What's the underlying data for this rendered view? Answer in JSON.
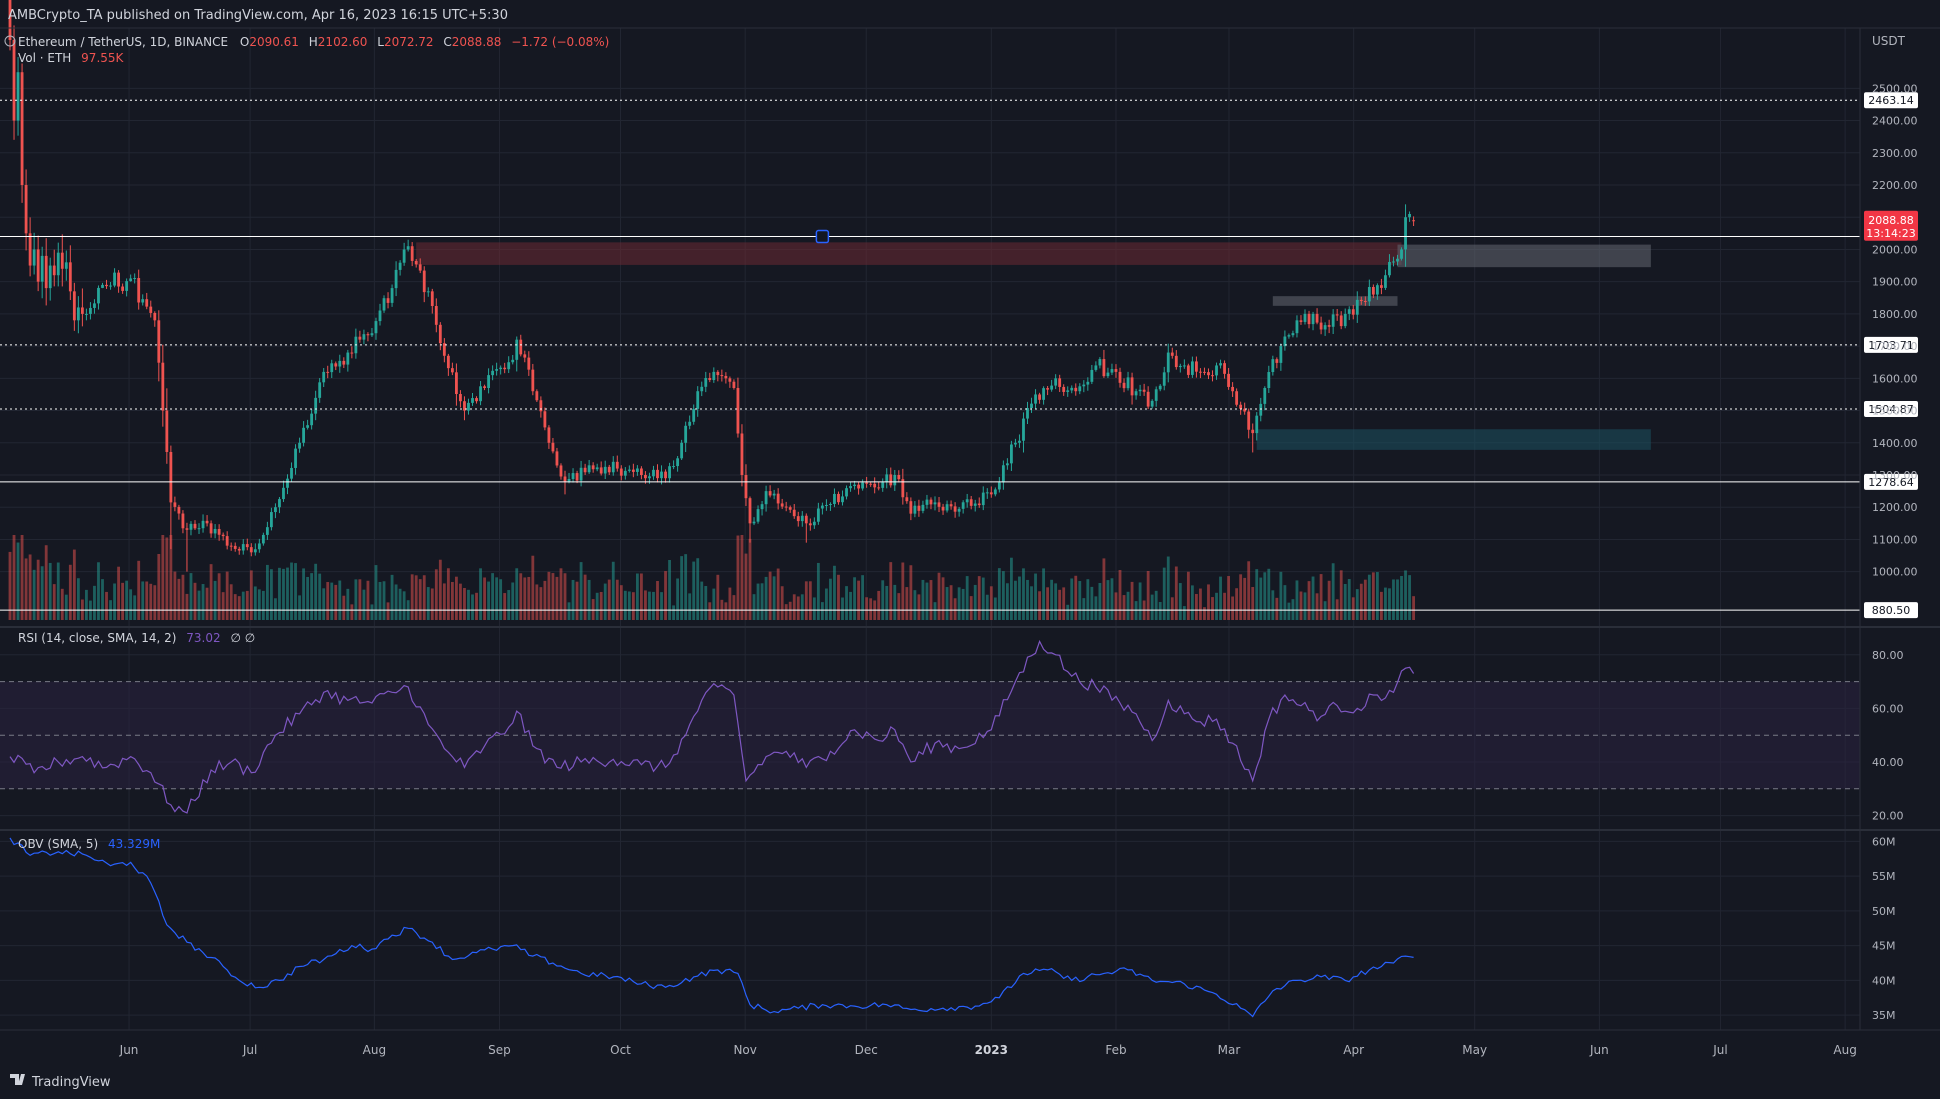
{
  "publisher_line": "AMBCrypto_TA published on TradingView.com, Apr 16, 2023 16:15 UTC+5:30",
  "footer_brand": "TradingView",
  "colors": {
    "background": "#151822",
    "grid": "#222632",
    "up": "#26a69a",
    "down": "#ef5350",
    "text": "#d1d4dc",
    "muted": "#b2b5be",
    "rsi_line": "#7e57c2",
    "rsi_band": "#2a2340",
    "obv_line": "#2962ff",
    "price_tag": "#f23645",
    "sr_line": "#ffffff",
    "zone_red": "#6b2a33",
    "zone_gray": "#5d606b",
    "zone_teal": "#1b4d5c"
  },
  "header": {
    "symbol": "Ethereum / TetherUS, 1D, BINANCE",
    "ohlc": [
      {
        "key": "O",
        "value": "2090.61"
      },
      {
        "key": "H",
        "value": "2102.60"
      },
      {
        "key": "L",
        "value": "2072.72"
      },
      {
        "key": "C",
        "value": "2088.88"
      }
    ],
    "change": "−1.72 (−0.08%)",
    "volume_label": "Vol · ETH",
    "volume_value": "97.55K"
  },
  "rsi_legend": {
    "label": "RSI (14, close, SMA, 14, 2)",
    "value": "73.02",
    "extras": "∅ ∅"
  },
  "obv_legend": {
    "label": "OBV (SMA, 5)",
    "value": "43.329M"
  },
  "chart_data": [
    {
      "type": "candlestick",
      "title": "Ethereum / TetherUS, 1D, BINANCE",
      "currency": "USDT",
      "time_axis": {
        "labels": [
          "Jun",
          "Jul",
          "Aug",
          "Sep",
          "Oct",
          "Nov",
          "Dec",
          "2023",
          "Feb",
          "Mar",
          "Apr",
          "May",
          "Jun",
          "Jul",
          "Aug"
        ],
        "positions_days": [
          29.6,
          59.7,
          90.6,
          121.7,
          151.8,
          182.8,
          212.9,
          244,
          275,
          303.1,
          334.1,
          364.2,
          395.2,
          425.3,
          456.3
        ],
        "range_days": [
          0,
          460
        ]
      },
      "ylim": [
        850,
        2650
      ],
      "y_ticks": [
        1000,
        1100,
        1200,
        1300,
        1400,
        1500,
        1600,
        1700,
        1800,
        1900,
        2000,
        2100,
        2200,
        2300,
        2400,
        2500
      ],
      "y_tick_labels": [
        "1000.00",
        "1100.00",
        "1200.00",
        "1300.00",
        "1400.00",
        "1500.00",
        "1600.00",
        "1700.00",
        "1800.00",
        "1900.00",
        "2000.00",
        "2100.00",
        "2200.00",
        "2300.00",
        "2400.00",
        "2500.00"
      ],
      "last_price": {
        "value": 2088.88,
        "label": "2088.88",
        "countdown": "13:14:23"
      },
      "horizontal_levels": [
        {
          "value": 2463.14,
          "label": "2463.14",
          "style": "dotted"
        },
        {
          "value": 2040,
          "label": "",
          "style": "solid"
        },
        {
          "value": 1703.71,
          "label": "1703.71",
          "style": "dotted"
        },
        {
          "value": 1504.87,
          "label": "1504.87",
          "style": "dotted"
        },
        {
          "value": 1278.64,
          "label": "1278.64",
          "style": "solid"
        },
        {
          "value": 880.5,
          "label": "880.50",
          "style": "solid"
        }
      ],
      "zones": [
        {
          "name": "supply-zone",
          "x_days": [
            101,
            346
          ],
          "y": [
            1952,
            2022
          ],
          "color": "zone_red"
        },
        {
          "name": "breaker-zone",
          "x_days": [
            345,
            408
          ],
          "y": [
            1945,
            2015
          ],
          "color": "zone_gray"
        },
        {
          "name": "bullish-order-block",
          "x_days": [
            314,
            345
          ],
          "y": [
            1825,
            1855
          ],
          "color": "zone_gray"
        },
        {
          "name": "demand-zone",
          "x_days": [
            310,
            408
          ],
          "y": [
            1378,
            1442
          ],
          "color": "zone_teal"
        }
      ],
      "anchors": [
        {
          "day": 19,
          "close": 1800,
          "low": 1780
        },
        {
          "day": 23,
          "close": 1890,
          "low": 1880
        },
        {
          "day": 30,
          "close": 1910,
          "low": 1900
        },
        {
          "day": 36,
          "close": 1780,
          "low": 1760
        },
        {
          "day": 38,
          "close": 1500,
          "low": 1450
        },
        {
          "day": 40,
          "close": 1215,
          "low": 1070
        },
        {
          "day": 44,
          "close": 1130,
          "low": 1000
        },
        {
          "day": 49,
          "close": 1150
        },
        {
          "day": 55,
          "close": 1080
        },
        {
          "day": 60,
          "close": 1060
        },
        {
          "day": 66,
          "close": 1200
        },
        {
          "day": 72,
          "close": 1400
        },
        {
          "day": 78,
          "close": 1620
        },
        {
          "day": 84,
          "close": 1680
        },
        {
          "day": 90,
          "close": 1740
        },
        {
          "day": 95,
          "close": 1880
        },
        {
          "day": 99,
          "close": 2010,
          "high": 2030
        },
        {
          "day": 104,
          "close": 1870
        },
        {
          "day": 108,
          "close": 1670
        },
        {
          "day": 113,
          "close": 1500,
          "low": 1470
        },
        {
          "day": 118,
          "close": 1570
        },
        {
          "day": 124,
          "close": 1650
        },
        {
          "day": 126,
          "close": 1720
        },
        {
          "day": 130,
          "close": 1560
        },
        {
          "day": 134,
          "close": 1400
        },
        {
          "day": 138,
          "close": 1280,
          "low": 1240
        },
        {
          "day": 144,
          "close": 1330
        },
        {
          "day": 151,
          "close": 1320
        },
        {
          "day": 157,
          "close": 1300
        },
        {
          "day": 163,
          "close": 1290
        },
        {
          "day": 167,
          "close": 1400
        },
        {
          "day": 171,
          "close": 1560
        },
        {
          "day": 175,
          "close": 1620
        },
        {
          "day": 178,
          "close": 1600
        },
        {
          "day": 180,
          "close": 1570
        },
        {
          "day": 182,
          "close": 1300
        },
        {
          "day": 184,
          "close": 1150,
          "low": 1090
        },
        {
          "day": 188,
          "close": 1250
        },
        {
          "day": 193,
          "close": 1200
        },
        {
          "day": 198,
          "close": 1150,
          "low": 1090
        },
        {
          "day": 204,
          "close": 1210
        },
        {
          "day": 210,
          "close": 1270
        },
        {
          "day": 216,
          "close": 1260
        },
        {
          "day": 220,
          "close": 1300
        },
        {
          "day": 224,
          "close": 1180,
          "low": 1160
        },
        {
          "day": 230,
          "close": 1215
        },
        {
          "day": 236,
          "close": 1195
        },
        {
          "day": 244,
          "close": 1240
        },
        {
          "day": 250,
          "close": 1400
        },
        {
          "day": 255,
          "close": 1550
        },
        {
          "day": 260,
          "close": 1600
        },
        {
          "day": 265,
          "close": 1560
        },
        {
          "day": 270,
          "close": 1640
        },
        {
          "day": 275,
          "close": 1620
        },
        {
          "day": 280,
          "close": 1560
        },
        {
          "day": 284,
          "close": 1530
        },
        {
          "day": 288,
          "close": 1680
        },
        {
          "day": 292,
          "close": 1640
        },
        {
          "day": 296,
          "close": 1620
        },
        {
          "day": 300,
          "close": 1640
        },
        {
          "day": 304,
          "close": 1560
        },
        {
          "day": 309,
          "close": 1430,
          "low": 1370
        },
        {
          "day": 312,
          "close": 1570
        },
        {
          "day": 316,
          "close": 1700
        },
        {
          "day": 320,
          "close": 1780
        },
        {
          "day": 324,
          "close": 1800
        },
        {
          "day": 328,
          "close": 1760
        },
        {
          "day": 332,
          "close": 1800
        },
        {
          "day": 336,
          "close": 1840
        },
        {
          "day": 339,
          "close": 1860
        },
        {
          "day": 342,
          "close": 1920
        },
        {
          "day": 346,
          "close": 2000
        },
        {
          "day": 347,
          "close": 2100,
          "high": 2140
        },
        {
          "day": 348,
          "close": 2110
        },
        {
          "day": 349,
          "close": 2088.88,
          "high": 2102.6,
          "low": 2072.72
        }
      ]
    },
    {
      "type": "line",
      "name": "RSI",
      "label": "RSI (14, close, SMA, 14, 2)",
      "ylim": [
        15,
        90
      ],
      "y_ticks": [
        20,
        40,
        60,
        80
      ],
      "y_tick_labels": [
        "20.00",
        "40.00",
        "60.00",
        "80.00"
      ],
      "band": [
        30,
        70
      ],
      "midline": 50,
      "anchors": [
        {
          "day": 0,
          "value": 42
        },
        {
          "day": 6,
          "value": 36
        },
        {
          "day": 12,
          "value": 40
        },
        {
          "day": 18,
          "value": 42
        },
        {
          "day": 24,
          "value": 38
        },
        {
          "day": 30,
          "value": 42
        },
        {
          "day": 35,
          "value": 36
        },
        {
          "day": 40,
          "value": 24
        },
        {
          "day": 44,
          "value": 21
        },
        {
          "day": 50,
          "value": 37
        },
        {
          "day": 55,
          "value": 40
        },
        {
          "day": 60,
          "value": 36
        },
        {
          "day": 66,
          "value": 50
        },
        {
          "day": 72,
          "value": 58
        },
        {
          "day": 78,
          "value": 66
        },
        {
          "day": 84,
          "value": 63
        },
        {
          "day": 90,
          "value": 62
        },
        {
          "day": 95,
          "value": 66
        },
        {
          "day": 99,
          "value": 68
        },
        {
          "day": 104,
          "value": 54
        },
        {
          "day": 108,
          "value": 45
        },
        {
          "day": 113,
          "value": 38
        },
        {
          "day": 118,
          "value": 46
        },
        {
          "day": 124,
          "value": 53
        },
        {
          "day": 126,
          "value": 59
        },
        {
          "day": 130,
          "value": 46
        },
        {
          "day": 136,
          "value": 38
        },
        {
          "day": 142,
          "value": 40
        },
        {
          "day": 150,
          "value": 41
        },
        {
          "day": 157,
          "value": 39
        },
        {
          "day": 163,
          "value": 38
        },
        {
          "day": 168,
          "value": 50
        },
        {
          "day": 172,
          "value": 63
        },
        {
          "day": 176,
          "value": 68
        },
        {
          "day": 180,
          "value": 65
        },
        {
          "day": 183,
          "value": 33
        },
        {
          "day": 188,
          "value": 42
        },
        {
          "day": 193,
          "value": 44
        },
        {
          "day": 198,
          "value": 38
        },
        {
          "day": 204,
          "value": 44
        },
        {
          "day": 210,
          "value": 52
        },
        {
          "day": 216,
          "value": 48
        },
        {
          "day": 220,
          "value": 52
        },
        {
          "day": 224,
          "value": 40
        },
        {
          "day": 230,
          "value": 47
        },
        {
          "day": 236,
          "value": 45
        },
        {
          "day": 244,
          "value": 52
        },
        {
          "day": 250,
          "value": 70
        },
        {
          "day": 256,
          "value": 85
        },
        {
          "day": 260,
          "value": 80
        },
        {
          "day": 264,
          "value": 72
        },
        {
          "day": 270,
          "value": 68
        },
        {
          "day": 276,
          "value": 62
        },
        {
          "day": 280,
          "value": 58
        },
        {
          "day": 284,
          "value": 48
        },
        {
          "day": 288,
          "value": 63
        },
        {
          "day": 292,
          "value": 58
        },
        {
          "day": 296,
          "value": 55
        },
        {
          "day": 300,
          "value": 56
        },
        {
          "day": 304,
          "value": 47
        },
        {
          "day": 309,
          "value": 33
        },
        {
          "day": 313,
          "value": 56
        },
        {
          "day": 317,
          "value": 65
        },
        {
          "day": 321,
          "value": 61
        },
        {
          "day": 326,
          "value": 57
        },
        {
          "day": 330,
          "value": 61
        },
        {
          "day": 335,
          "value": 60
        },
        {
          "day": 340,
          "value": 65
        },
        {
          "day": 344,
          "value": 66
        },
        {
          "day": 347,
          "value": 75
        },
        {
          "day": 349,
          "value": 73.02
        }
      ]
    },
    {
      "type": "line",
      "name": "OBV",
      "label": "OBV (SMA, 5)",
      "ylim": [
        33,
        61.5
      ],
      "y_ticks": [
        35,
        40,
        45,
        50,
        55,
        60
      ],
      "y_tick_labels": [
        "35M",
        "40M",
        "45M",
        "50M",
        "55M",
        "60M"
      ],
      "anchors": [
        {
          "day": 0,
          "value": 60.5
        },
        {
          "day": 5,
          "value": 58
        },
        {
          "day": 12,
          "value": 58.5
        },
        {
          "day": 19,
          "value": 58
        },
        {
          "day": 25,
          "value": 56.5
        },
        {
          "day": 30,
          "value": 57
        },
        {
          "day": 35,
          "value": 54
        },
        {
          "day": 39,
          "value": 48
        },
        {
          "day": 44,
          "value": 45.5
        },
        {
          "day": 48,
          "value": 44
        },
        {
          "day": 53,
          "value": 42
        },
        {
          "day": 57,
          "value": 40
        },
        {
          "day": 62,
          "value": 39
        },
        {
          "day": 67,
          "value": 40
        },
        {
          "day": 72,
          "value": 42
        },
        {
          "day": 78,
          "value": 43
        },
        {
          "day": 85,
          "value": 45
        },
        {
          "day": 90,
          "value": 44.5
        },
        {
          "day": 95,
          "value": 46.5
        },
        {
          "day": 99,
          "value": 47.5
        },
        {
          "day": 105,
          "value": 45.5
        },
        {
          "day": 110,
          "value": 43
        },
        {
          "day": 116,
          "value": 44
        },
        {
          "day": 120,
          "value": 44.5
        },
        {
          "day": 125,
          "value": 45
        },
        {
          "day": 130,
          "value": 43.5
        },
        {
          "day": 135,
          "value": 42.5
        },
        {
          "day": 142,
          "value": 41
        },
        {
          "day": 150,
          "value": 40.5
        },
        {
          "day": 157,
          "value": 39.5
        },
        {
          "day": 163,
          "value": 39
        },
        {
          "day": 170,
          "value": 40.5
        },
        {
          "day": 176,
          "value": 41.5
        },
        {
          "day": 181,
          "value": 41
        },
        {
          "day": 184,
          "value": 36.5
        },
        {
          "day": 190,
          "value": 35.5
        },
        {
          "day": 196,
          "value": 36
        },
        {
          "day": 202,
          "value": 36.5
        },
        {
          "day": 210,
          "value": 36.3
        },
        {
          "day": 218,
          "value": 36.5
        },
        {
          "day": 224,
          "value": 35.8
        },
        {
          "day": 232,
          "value": 36
        },
        {
          "day": 240,
          "value": 36.3
        },
        {
          "day": 246,
          "value": 37.5
        },
        {
          "day": 252,
          "value": 41
        },
        {
          "day": 258,
          "value": 41.5
        },
        {
          "day": 264,
          "value": 40
        },
        {
          "day": 272,
          "value": 41
        },
        {
          "day": 278,
          "value": 41.5
        },
        {
          "day": 284,
          "value": 40
        },
        {
          "day": 292,
          "value": 39.5
        },
        {
          "day": 300,
          "value": 38
        },
        {
          "day": 306,
          "value": 36
        },
        {
          "day": 309,
          "value": 34.8
        },
        {
          "day": 314,
          "value": 38.5
        },
        {
          "day": 320,
          "value": 40
        },
        {
          "day": 326,
          "value": 40.5
        },
        {
          "day": 332,
          "value": 40
        },
        {
          "day": 338,
          "value": 41.5
        },
        {
          "day": 344,
          "value": 42.5
        },
        {
          "day": 347,
          "value": 43.5
        },
        {
          "day": 349,
          "value": 43.3
        }
      ]
    }
  ]
}
